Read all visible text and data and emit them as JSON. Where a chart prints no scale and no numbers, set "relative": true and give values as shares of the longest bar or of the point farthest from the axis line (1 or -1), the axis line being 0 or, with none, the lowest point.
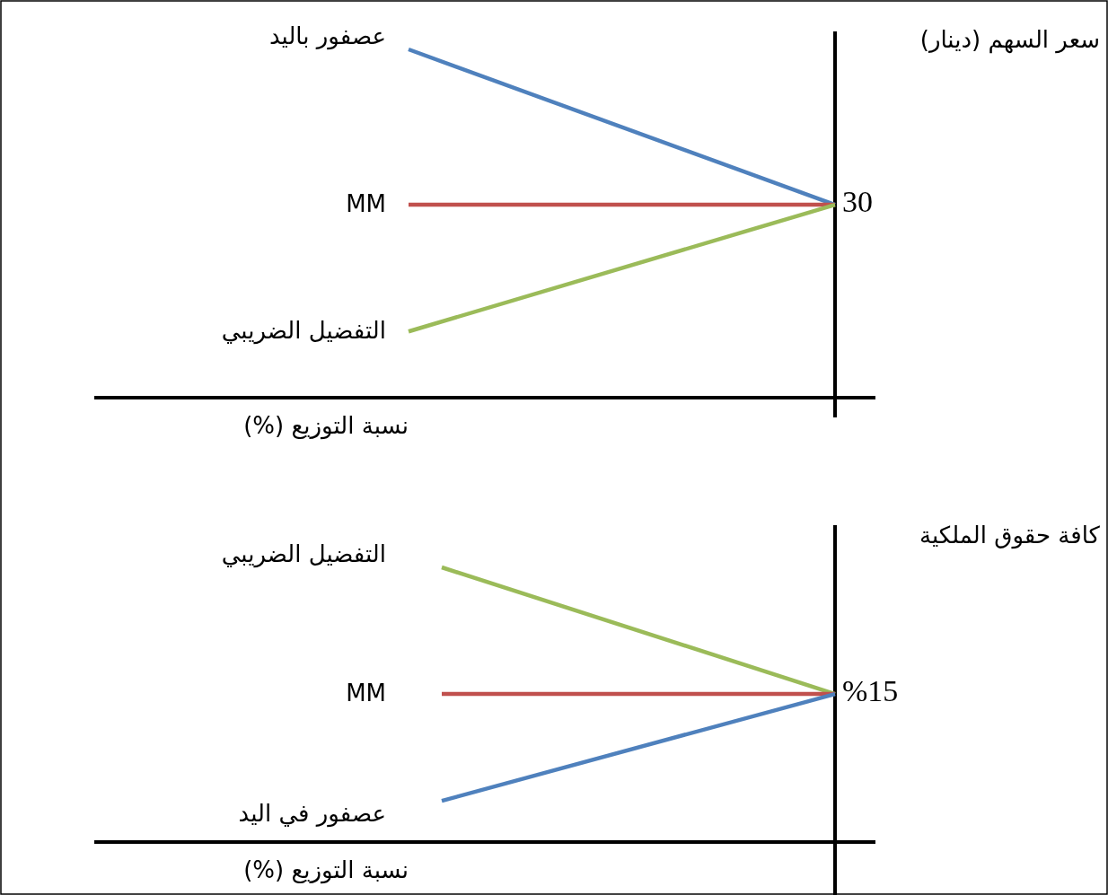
{
  "chart_data": [
    {
      "type": "line",
      "relative": true,
      "categories": [
        null,
        null
      ],
      "ylabel": "سعر السهم (دينار)",
      "xlabel": "نسبة التوزيع (%)",
      "annotations": [
        "30"
      ],
      "series": [
        {
          "name": "عصفور باليد",
          "color": "#4f81bd",
          "values": [
            1,
            0.554
          ]
        },
        {
          "name": "MM",
          "color": "#c0504d",
          "values": [
            0.554,
            0.554
          ]
        },
        {
          "name": "التفضيل الضريبي",
          "color": "#9bbb59",
          "values": [
            0.19,
            0.554
          ]
        }
      ]
    },
    {
      "type": "line",
      "relative": true,
      "categories": [
        null,
        null
      ],
      "ylabel": "كافة حقوق الملكية",
      "xlabel": "نسبة التوزيع (%)",
      "annotations": [
        "%15"
      ],
      "series": [
        {
          "name": "التفضيل الضريبي",
          "color": "#9bbb59",
          "values": [
            1,
            0.539
          ]
        },
        {
          "name": "MM",
          "color": "#c0504d",
          "values": [
            0.539,
            0.539
          ]
        },
        {
          "name": "عصفور في اليد",
          "color": "#4f81bd",
          "values": [
            0.15,
            0.539
          ]
        }
      ]
    }
  ]
}
